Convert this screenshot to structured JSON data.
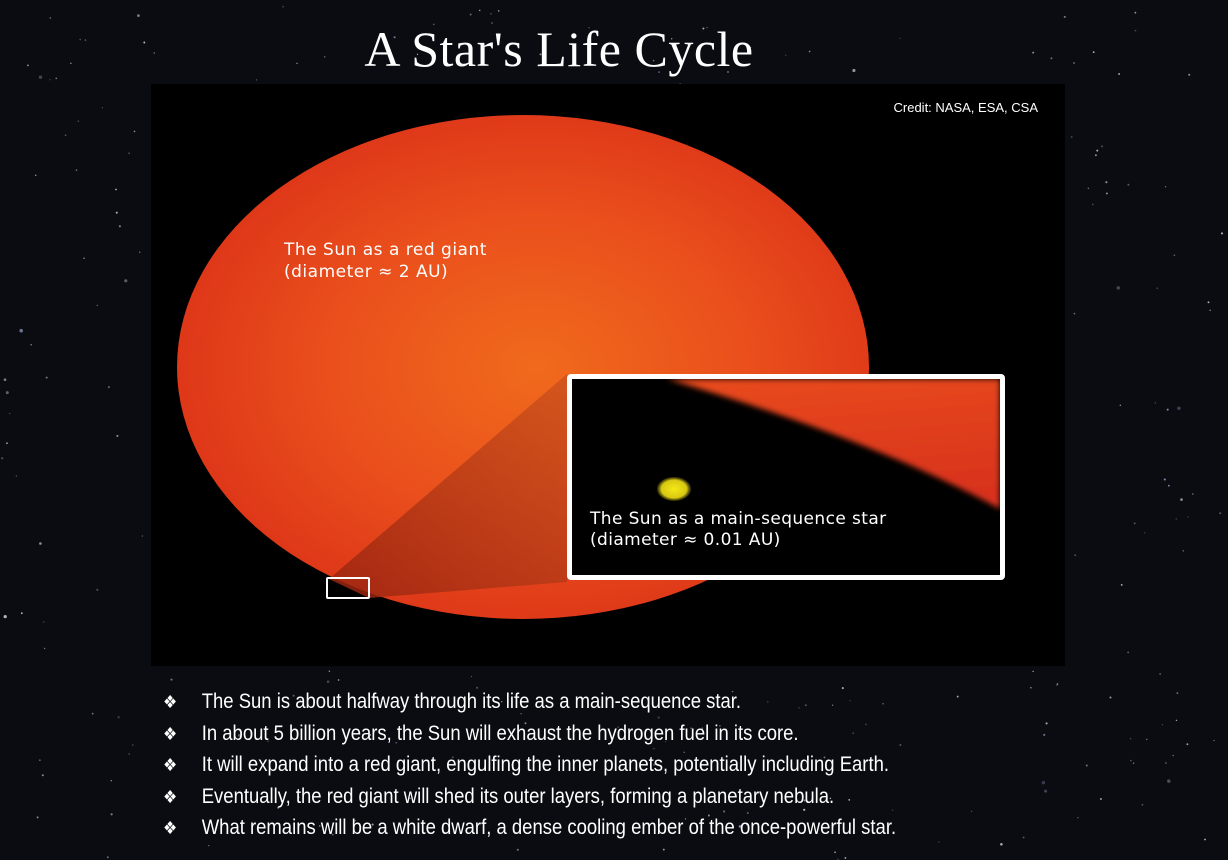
{
  "slide": {
    "title": "A Star's Life Cycle"
  },
  "image": {
    "credit": "Credit: NASA, ESA, CSA",
    "red_giant": {
      "label_line1": "The Sun as a red giant",
      "label_line2": "(diameter ≈ 2 AU)"
    },
    "main_sequence": {
      "label_line1": "The Sun as a main-sequence star",
      "label_line2": "(diameter ≈ 0.01 AU)"
    },
    "colors": {
      "giant_edge": "#dc3418",
      "giant_center": "#f06a1c",
      "sun_yellow": "#f5e817",
      "frame": "#ffffff"
    }
  },
  "bullets": {
    "marker": "❖",
    "items": [
      "The Sun is about halfway through its life as a main-sequence star.",
      "In about 5 billion years, the Sun will exhaust the hydrogen fuel in its core.",
      "It will expand into a red giant, engulfing the inner planets, potentially including Earth.",
      "Eventually, the red giant will shed its outer layers, forming a planetary nebula.",
      "What remains will be a white dwarf, a dense cooling ember of the once-powerful star."
    ]
  }
}
